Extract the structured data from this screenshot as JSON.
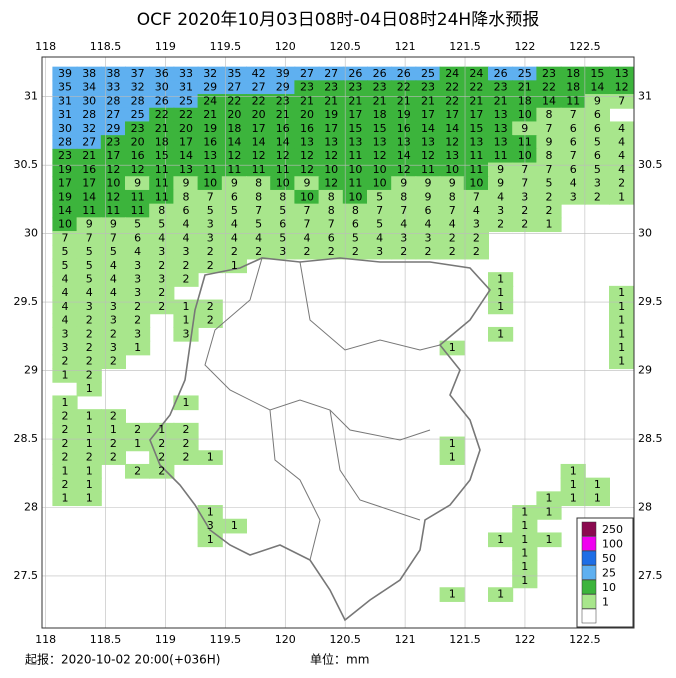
{
  "title": "OCF 2020年10月03日08时-04日08时24H降水预报",
  "lonlim": [
    117.97,
    122.91
  ],
  "latlim": [
    27.12,
    31.29
  ],
  "lonticks": [
    118,
    118.5,
    119,
    119.5,
    120,
    120.5,
    121,
    121.5,
    122,
    122.5
  ],
  "latticks": [
    31,
    30.5,
    30,
    29.5,
    29,
    28.5,
    28,
    27.5
  ],
  "grid": {
    "rows": [
      [
        39,
        38,
        38,
        37,
        36,
        33,
        32,
        35,
        42,
        39,
        27,
        27,
        26,
        26,
        26,
        25,
        24,
        24,
        26,
        25,
        23,
        18,
        15,
        13
      ],
      [
        35,
        34,
        33,
        32,
        30,
        31,
        29,
        27,
        27,
        29,
        23,
        23,
        23,
        23,
        22,
        23,
        22,
        22,
        23,
        21,
        22,
        18,
        14,
        12
      ],
      [
        31,
        30,
        28,
        28,
        26,
        25,
        24,
        22,
        22,
        23,
        21,
        21,
        21,
        21,
        21,
        21,
        22,
        21,
        21,
        18,
        14,
        11,
        9,
        7
      ],
      [
        31,
        28,
        27,
        25,
        22,
        22,
        21,
        20,
        20,
        21,
        20,
        19,
        17,
        18,
        19,
        17,
        17,
        17,
        13,
        10,
        8,
        7,
        6
      ],
      [
        30,
        32,
        29,
        23,
        21,
        20,
        19,
        18,
        17,
        16,
        16,
        17,
        15,
        15,
        16,
        14,
        14,
        15,
        13,
        9,
        7,
        6,
        6,
        4
      ],
      [
        28,
        27,
        23,
        20,
        18,
        17,
        16,
        14,
        14,
        14,
        13,
        13,
        13,
        13,
        13,
        13,
        12,
        13,
        13,
        11,
        9,
        6,
        5,
        4
      ],
      [
        23,
        21,
        17,
        16,
        15,
        14,
        13,
        12,
        12,
        12,
        12,
        12,
        11,
        12,
        14,
        12,
        13,
        11,
        11,
        10,
        8,
        7,
        6,
        4
      ],
      [
        19,
        16,
        12,
        12,
        11,
        13,
        11,
        11,
        11,
        11,
        12,
        10,
        10,
        10,
        12,
        11,
        10,
        11,
        9,
        7,
        7,
        6,
        5,
        4
      ],
      [
        17,
        17,
        10,
        9,
        11,
        9,
        10,
        9,
        8,
        10,
        9,
        12,
        11,
        10,
        9,
        9,
        9,
        10,
        9,
        7,
        5,
        4,
        3,
        2
      ],
      [
        19,
        14,
        12,
        11,
        11,
        8,
        7,
        6,
        8,
        8,
        10,
        8,
        10,
        5,
        8,
        9,
        8,
        7,
        4,
        3,
        2,
        3,
        2,
        1
      ],
      [
        14,
        11,
        11,
        11,
        8,
        6,
        5,
        5,
        7,
        5,
        7,
        8,
        8,
        7,
        7,
        6,
        7,
        4,
        3,
        2,
        2
      ],
      [
        10,
        9,
        9,
        5,
        5,
        4,
        3,
        4,
        5,
        6,
        7,
        7,
        6,
        5,
        4,
        4,
        4,
        3,
        2,
        2,
        1
      ],
      [
        7,
        7,
        7,
        6,
        4,
        4,
        3,
        4,
        4,
        5,
        4,
        6,
        5,
        4,
        3,
        3,
        2,
        2
      ],
      [
        5,
        5,
        5,
        4,
        3,
        3,
        2,
        2,
        2,
        3,
        2,
        2,
        2,
        3,
        2,
        2,
        2,
        2
      ],
      [
        5,
        5,
        4,
        3,
        2,
        2,
        2,
        1
      ],
      [
        4,
        5,
        4,
        3,
        3,
        2,
        null,
        null,
        null,
        null,
        null,
        null,
        null,
        null,
        null,
        null,
        null,
        null,
        1
      ],
      [
        4,
        4,
        4,
        3,
        2,
        null,
        null,
        null,
        null,
        null,
        null,
        null,
        null,
        null,
        null,
        null,
        null,
        null,
        1,
        null,
        null,
        null,
        null,
        1
      ],
      [
        4,
        3,
        3,
        2,
        2,
        1,
        2,
        null,
        null,
        null,
        null,
        null,
        null,
        null,
        null,
        null,
        null,
        null,
        1,
        null,
        null,
        null,
        null,
        1
      ],
      [
        4,
        2,
        3,
        2,
        null,
        1,
        2,
        null,
        null,
        null,
        null,
        null,
        null,
        null,
        null,
        null,
        null,
        null,
        null,
        null,
        null,
        null,
        null,
        1
      ],
      [
        3,
        2,
        2,
        3,
        null,
        3,
        null,
        null,
        null,
        null,
        null,
        null,
        null,
        null,
        null,
        null,
        null,
        null,
        1,
        null,
        null,
        null,
        null,
        1
      ],
      [
        3,
        2,
        3,
        1,
        null,
        null,
        null,
        null,
        null,
        null,
        null,
        null,
        null,
        null,
        null,
        null,
        1,
        null,
        null,
        null,
        null,
        null,
        null,
        1
      ],
      [
        2,
        2,
        2,
        null,
        null,
        null,
        null,
        null,
        null,
        null,
        null,
        null,
        null,
        null,
        null,
        null,
        null,
        null,
        null,
        null,
        null,
        null,
        null,
        1
      ],
      [
        1,
        2
      ],
      [
        null,
        1
      ],
      [
        1,
        null,
        null,
        null,
        null,
        1
      ],
      [
        2,
        1,
        2
      ],
      [
        2,
        1,
        1,
        2,
        1,
        2
      ],
      [
        2,
        1,
        2,
        1,
        2,
        2,
        null,
        null,
        null,
        null,
        null,
        null,
        null,
        null,
        null,
        null,
        1
      ],
      [
        2,
        2,
        2,
        null,
        2,
        2,
        1,
        null,
        null,
        null,
        null,
        null,
        null,
        null,
        null,
        null,
        1
      ],
      [
        1,
        1,
        null,
        2,
        2,
        null,
        null,
        null,
        null,
        null,
        null,
        null,
        null,
        null,
        null,
        null,
        null,
        null,
        null,
        null,
        null,
        1
      ],
      [
        2,
        1,
        null,
        null,
        null,
        null,
        null,
        null,
        null,
        null,
        null,
        null,
        null,
        null,
        null,
        null,
        null,
        null,
        null,
        null,
        null,
        1,
        1
      ],
      [
        1,
        1,
        null,
        null,
        null,
        null,
        null,
        null,
        null,
        null,
        null,
        null,
        null,
        null,
        null,
        null,
        null,
        null,
        null,
        null,
        1,
        1,
        1
      ],
      [
        null,
        null,
        null,
        null,
        null,
        null,
        1,
        null,
        null,
        null,
        null,
        null,
        null,
        null,
        null,
        null,
        null,
        null,
        null,
        1,
        1
      ],
      [
        null,
        null,
        null,
        null,
        null,
        null,
        3,
        1,
        null,
        null,
        null,
        null,
        null,
        null,
        null,
        null,
        null,
        null,
        null,
        1
      ],
      [
        null,
        null,
        null,
        null,
        null,
        null,
        1,
        null,
        null,
        null,
        null,
        null,
        null,
        null,
        null,
        null,
        null,
        null,
        1,
        1,
        1
      ],
      [
        null,
        null,
        null,
        null,
        null,
        null,
        null,
        null,
        null,
        null,
        null,
        null,
        null,
        null,
        null,
        null,
        null,
        null,
        null,
        1
      ],
      [
        null,
        null,
        null,
        null,
        null,
        null,
        null,
        null,
        null,
        null,
        null,
        null,
        null,
        null,
        null,
        null,
        null,
        null,
        null,
        1
      ],
      [
        null,
        null,
        null,
        null,
        null,
        null,
        null,
        null,
        null,
        null,
        null,
        null,
        null,
        null,
        null,
        null,
        null,
        null,
        null,
        1
      ],
      [
        null,
        null,
        null,
        null,
        null,
        null,
        null,
        null,
        null,
        null,
        null,
        null,
        null,
        null,
        null,
        null,
        1,
        null,
        1
      ]
    ]
  },
  "legend": {
    "levels": [
      250,
      100,
      50,
      25,
      10,
      1
    ],
    "colors": [
      "#8b0a50",
      "#f000f0",
      "#1e6ee6",
      "#5fb0f0",
      "#3cb43c",
      "#a8e68c"
    ]
  },
  "footer": {
    "issue": "起报：2020-10-02 20:00(+036H)",
    "unit": "单位：mm"
  }
}
